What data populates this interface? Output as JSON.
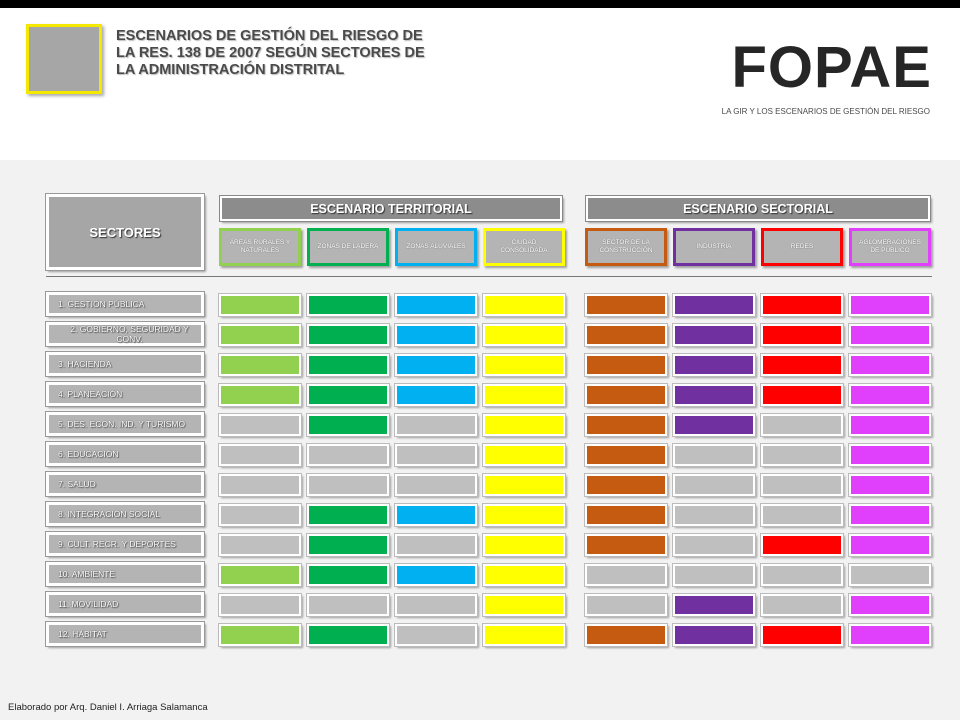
{
  "header": {
    "title": "ESCENARIOS  DE  GESTIÓN DEL RIESGO DE\nLA RES. 138 DE 2007 SEGÚN SECTORES DE\nLA ADMINISTRACIÓN DISTRITAL",
    "brand": "FOPAE",
    "brand_subtitle": "LA GIR Y LOS ESCENARIOS DE GESTIÓN DEL RIESGO"
  },
  "sectores_label": "SECTORES",
  "territorial": {
    "title": "ESCENARIO TERRITORIAL",
    "columns": [
      {
        "label": "ÁREAS RURALES Y NATURALES",
        "color": "#92d050"
      },
      {
        "label": "ZONAS DE LADERA",
        "color": "#00b050"
      },
      {
        "label": "ZONAS ALUVIALES",
        "color": "#00b0f0"
      },
      {
        "label": "CIUDAD CONSOLIDADA",
        "color": "#ffff00"
      }
    ]
  },
  "sectorial": {
    "title": "ESCENARIO SECTORIAL",
    "columns": [
      {
        "label": "SECTOR DE LA CONSTRUCCIÓN",
        "color": "#c55a11"
      },
      {
        "label": "INDUSTRIA",
        "color": "#7030a0"
      },
      {
        "label": "REDES",
        "color": "#ff0000"
      },
      {
        "label": "AGLOMERACIONES DE PÚBLICO",
        "color": "#e040fb"
      }
    ]
  },
  "inactive_color": "#bfbfbf",
  "rows": [
    {
      "label": "1. GESTIÓN PÚBLICA",
      "active": [
        1,
        1,
        1,
        1,
        1,
        1,
        1,
        1
      ]
    },
    {
      "label": "2. GOBIERNO, SEGURIDAD  Y CONV.",
      "active": [
        1,
        1,
        1,
        1,
        1,
        1,
        1,
        1
      ]
    },
    {
      "label": "3. HACIENDA",
      "active": [
        1,
        1,
        1,
        1,
        1,
        1,
        1,
        1
      ]
    },
    {
      "label": "4. PLANEACIÓN",
      "active": [
        1,
        1,
        1,
        1,
        1,
        1,
        1,
        1
      ]
    },
    {
      "label": "5. DES. ECON. IND. Y TURISMO",
      "active": [
        0,
        1,
        0,
        1,
        1,
        1,
        0,
        1
      ]
    },
    {
      "label": "6. EDUCACIÓN",
      "active": [
        0,
        0,
        0,
        1,
        1,
        0,
        0,
        1
      ]
    },
    {
      "label": "7. SALUD",
      "active": [
        0,
        0,
        0,
        1,
        1,
        0,
        0,
        1
      ]
    },
    {
      "label": "8. INTEGRACIÓN SOCIAL",
      "active": [
        0,
        1,
        1,
        1,
        1,
        0,
        0,
        1
      ]
    },
    {
      "label": "9. CULT. RECR. Y DEPORTES",
      "active": [
        0,
        1,
        0,
        1,
        1,
        0,
        1,
        1
      ]
    },
    {
      "label": "10. AMBIENTE",
      "active": [
        1,
        1,
        1,
        1,
        0,
        0,
        0,
        0
      ]
    },
    {
      "label": "11. MOVILIDAD",
      "active": [
        0,
        0,
        0,
        1,
        0,
        1,
        0,
        1
      ]
    },
    {
      "label": "12. HÁBITAT",
      "active": [
        1,
        1,
        0,
        1,
        1,
        1,
        1,
        1
      ]
    }
  ],
  "credit": "Elaborado por Arq. Daniel I. Arriaga Salamanca"
}
